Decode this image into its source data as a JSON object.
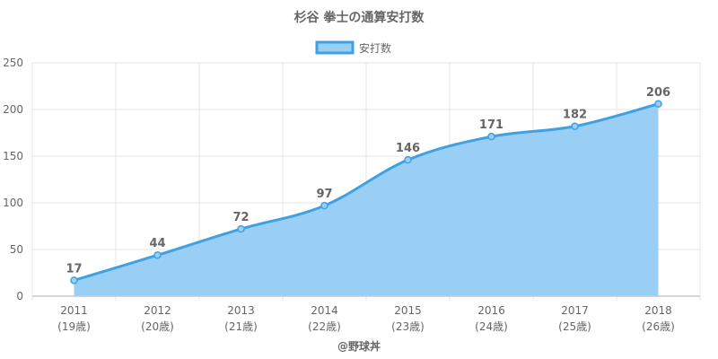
{
  "chart_data": {
    "type": "area",
    "title": "杉谷 拳士の通算安打数",
    "categories": [
      "2011",
      "2012",
      "2013",
      "2014",
      "2015",
      "2016",
      "2017",
      "2018"
    ],
    "category_sublabels": [
      "(19歳)",
      "(20歳)",
      "(21歳)",
      "(22歳)",
      "(23歳)",
      "(24歳)",
      "(25歳)",
      "(26歳)"
    ],
    "series": [
      {
        "name": "安打数",
        "values": [
          17,
          44,
          72,
          97,
          146,
          171,
          182,
          206
        ]
      }
    ],
    "ylim": [
      0,
      250
    ],
    "yticks": [
      0,
      50,
      100,
      150,
      200,
      250
    ],
    "grid": true,
    "legend_position": "top-center",
    "data_labels": true,
    "colors": {
      "line": "#3fa1e4",
      "fill": "#9acff5",
      "grid": "#e6e6e6",
      "axis": "#c8c8c8",
      "text": "#666666"
    }
  },
  "credit": "@野球丼"
}
